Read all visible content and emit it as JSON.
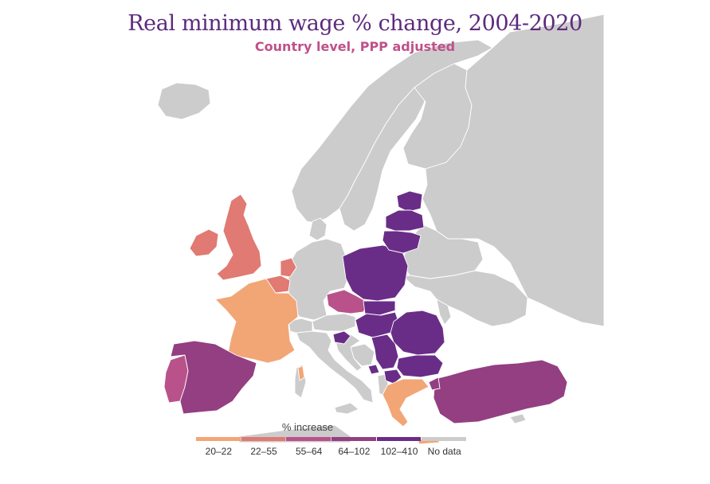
{
  "title": "Real minimum wage % change, 2004-2020",
  "subtitle": "Country level, PPP adjusted",
  "legend": {
    "title": "% increase",
    "items": [
      {
        "label": "20–22",
        "color": "#f2a676"
      },
      {
        "label": "22–55",
        "color": "#e07a72"
      },
      {
        "label": "55–64",
        "color": "#b9528a"
      },
      {
        "label": "64–102",
        "color": "#933f82"
      },
      {
        "label": "102–410",
        "color": "#6a2d87"
      },
      {
        "label": "No data",
        "color": "#cccccc"
      }
    ]
  },
  "colors": {
    "nodata": "#cccccc",
    "c20_22": "#f2a676",
    "c22_55": "#e07a72",
    "c55_64": "#b9528a",
    "c64_102": "#933f82",
    "c102_410": "#6a2d87"
  },
  "countries": [
    {
      "name": "United Kingdom",
      "legend": "22–55"
    },
    {
      "name": "Ireland",
      "legend": "22–55"
    },
    {
      "name": "Netherlands",
      "legend": "22–55"
    },
    {
      "name": "Belgium",
      "legend": "22–55"
    },
    {
      "name": "France",
      "legend": "20–22"
    },
    {
      "name": "Portugal",
      "legend": "55–64"
    },
    {
      "name": "Spain",
      "legend": "64–102"
    },
    {
      "name": "Greece",
      "legend": "20–22"
    },
    {
      "name": "Czechia",
      "legend": "55–64"
    },
    {
      "name": "Turkey",
      "legend": "64–102"
    },
    {
      "name": "Slovenia",
      "legend": "102–410"
    },
    {
      "name": "Poland",
      "legend": "102–410"
    },
    {
      "name": "Slovakia",
      "legend": "102–410"
    },
    {
      "name": "Hungary",
      "legend": "102–410"
    },
    {
      "name": "Romania",
      "legend": "102–410"
    },
    {
      "name": "Bulgaria",
      "legend": "102–410"
    },
    {
      "name": "Serbia",
      "legend": "102–410"
    },
    {
      "name": "Estonia",
      "legend": "102–410"
    },
    {
      "name": "Latvia",
      "legend": "102–410"
    },
    {
      "name": "Lithuania",
      "legend": "102–410"
    },
    {
      "name": "North Macedonia",
      "legend": "102–410"
    },
    {
      "name": "Montenegro",
      "legend": "102–410"
    },
    {
      "name": "Croatia",
      "legend": "No data"
    }
  ]
}
